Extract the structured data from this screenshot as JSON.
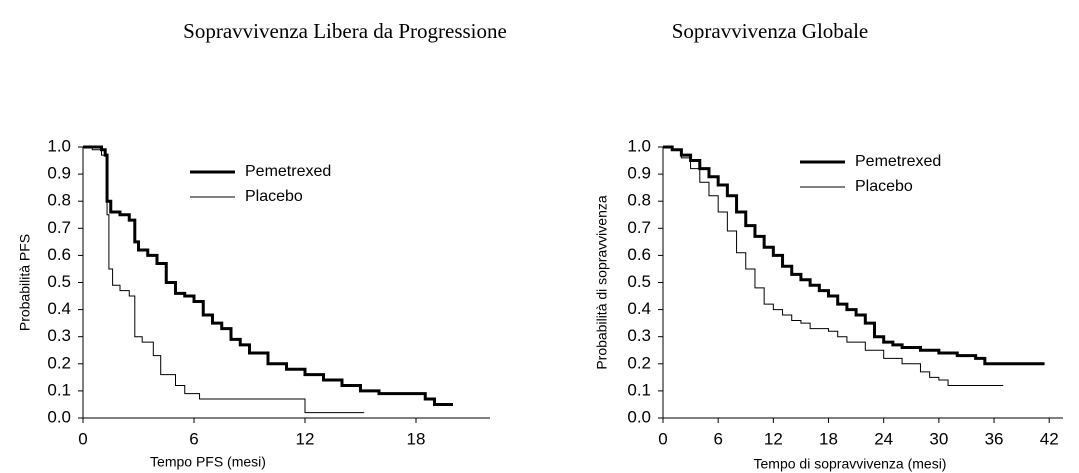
{
  "chart_data": [
    {
      "type": "line",
      "step": true,
      "title": "Sopravvivenza Libera da Progressione",
      "x_label": "Tempo PFS (mesi)",
      "y_label": "Probabilità PFS",
      "xlim": [
        0,
        22
      ],
      "xticks": [
        0,
        6,
        12,
        18
      ],
      "ylim": [
        0,
        1
      ],
      "yticks": [
        {
          "value": 0,
          "label": "0.0"
        },
        0.1,
        0.2,
        0.3,
        0.4,
        0.5,
        0.6,
        0.7,
        0.8,
        0.9,
        {
          "value": 1,
          "label": "1.0"
        }
      ],
      "series": [
        {
          "name": "Pemetrexed",
          "color": "#000000",
          "width": 3,
          "x": [
            0,
            1,
            1.2,
            1.3,
            1.5,
            2,
            2.5,
            2.8,
            3,
            3.5,
            4,
            4.5,
            5,
            5.5,
            6,
            6.5,
            7,
            7.5,
            8,
            8.5,
            9,
            10,
            11,
            12,
            13,
            14,
            15,
            16,
            18,
            18.5,
            19,
            20
          ],
          "values": [
            1.0,
            0.99,
            0.97,
            0.8,
            0.76,
            0.75,
            0.73,
            0.65,
            0.62,
            0.6,
            0.57,
            0.5,
            0.46,
            0.45,
            0.43,
            0.38,
            0.35,
            0.33,
            0.29,
            0.27,
            0.24,
            0.2,
            0.18,
            0.16,
            0.14,
            0.12,
            0.1,
            0.09,
            0.09,
            0.07,
            0.05,
            0.05
          ]
        },
        {
          "name": "Placebo",
          "color": "#000000",
          "width": 1,
          "x": [
            0,
            0.5,
            1,
            1.3,
            1.4,
            1.6,
            2,
            2.5,
            2.8,
            3.2,
            3.8,
            4.2,
            5,
            5.5,
            6.3,
            12,
            15.2
          ],
          "values": [
            1.0,
            0.99,
            0.97,
            0.75,
            0.55,
            0.49,
            0.47,
            0.45,
            0.3,
            0.28,
            0.23,
            0.16,
            0.12,
            0.09,
            0.07,
            0.02,
            0.02
          ]
        }
      ]
    },
    {
      "type": "line",
      "step": true,
      "title": "Sopravvivenza Globale",
      "x_label": "Tempo di sopravvivenza (mesi)",
      "y_label": "Probabilità di sopravvivenza",
      "xlim": [
        0,
        43.5
      ],
      "xticks": [
        0,
        6,
        12,
        18,
        24,
        30,
        36,
        42
      ],
      "ylim": [
        0,
        1
      ],
      "yticks": [
        {
          "value": 0,
          "label": "0.0"
        },
        0.1,
        0.2,
        0.3,
        0.4,
        0.5,
        0.6,
        0.7,
        0.8,
        0.9,
        {
          "value": 1,
          "label": "1.0"
        }
      ],
      "series": [
        {
          "name": "Pemetrexed",
          "color": "#000000",
          "width": 3,
          "x": [
            0,
            1,
            2,
            3,
            4,
            5,
            6,
            7,
            8,
            9,
            10,
            11,
            12,
            13,
            14,
            15,
            16,
            17,
            18,
            19,
            20,
            21,
            22,
            23,
            24,
            25,
            26,
            28,
            30,
            32,
            34,
            35,
            41.5
          ],
          "values": [
            1.0,
            0.99,
            0.97,
            0.95,
            0.92,
            0.89,
            0.86,
            0.82,
            0.76,
            0.71,
            0.67,
            0.63,
            0.6,
            0.56,
            0.53,
            0.51,
            0.49,
            0.47,
            0.45,
            0.42,
            0.4,
            0.38,
            0.35,
            0.3,
            0.28,
            0.27,
            0.26,
            0.25,
            0.24,
            0.23,
            0.22,
            0.2,
            0.2
          ]
        },
        {
          "name": "Placebo",
          "color": "#000000",
          "width": 1,
          "x": [
            0,
            1,
            2,
            3,
            4,
            5,
            6,
            7,
            8,
            9,
            10,
            11,
            12,
            13,
            14,
            15,
            16,
            18,
            19,
            20,
            22,
            24,
            26,
            28,
            29,
            30,
            31,
            37
          ],
          "values": [
            1.0,
            0.99,
            0.96,
            0.92,
            0.87,
            0.82,
            0.76,
            0.69,
            0.61,
            0.55,
            0.48,
            0.42,
            0.4,
            0.38,
            0.36,
            0.35,
            0.33,
            0.32,
            0.3,
            0.28,
            0.25,
            0.22,
            0.2,
            0.17,
            0.15,
            0.14,
            0.12,
            0.12
          ]
        }
      ]
    }
  ]
}
